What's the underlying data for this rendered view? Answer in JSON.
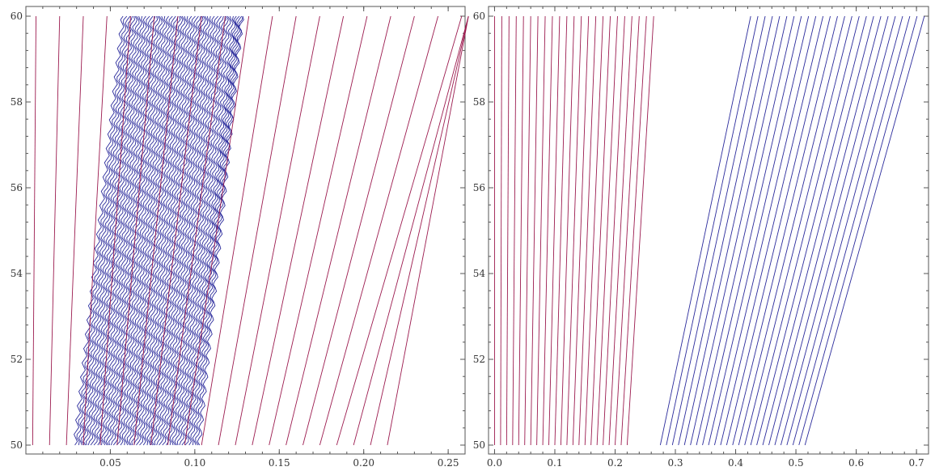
{
  "chart_data": [
    {
      "type": "line",
      "xlim": [
        0.0,
        0.26
      ],
      "ylim": [
        50,
        60
      ],
      "x_major_ticks": [
        0.05,
        0.1,
        0.15,
        0.2,
        0.25
      ],
      "x_minor_step": 0.01,
      "y_major_ticks": [
        50,
        52,
        54,
        56,
        58,
        60
      ],
      "y_minor_step": 0.4,
      "grid": false,
      "colors": {
        "series_a": "#2b2b9c",
        "series_b": "#9c1b4f"
      },
      "series": [
        {
          "color_key": "series_a",
          "x_start": [
            0.029,
            0.0305,
            0.032,
            0.0335,
            0.035,
            0.0365,
            0.038,
            0.0395,
            0.041,
            0.0425,
            0.044,
            0.0455,
            0.047,
            0.0485,
            0.05,
            0.0515,
            0.053,
            0.0545,
            0.056,
            0.0575,
            0.059,
            0.0605,
            0.062,
            0.0635,
            0.065,
            0.0665,
            0.068,
            0.0695,
            0.071,
            0.0725,
            0.074,
            0.0755,
            0.077,
            0.0785,
            0.08,
            0.0815,
            0.083,
            0.0845,
            0.086,
            0.0875,
            0.089,
            0.0905,
            0.092,
            0.0935,
            0.095,
            0.0965,
            0.098,
            0.0995,
            0.101,
            0.1025
          ],
          "x_end": [
            0.0575,
            0.059,
            0.0605,
            0.062,
            0.0635,
            0.065,
            0.0665,
            0.068,
            0.0695,
            0.071,
            0.0725,
            0.074,
            0.0755,
            0.077,
            0.0785,
            0.08,
            0.0815,
            0.083,
            0.0845,
            0.086,
            0.0875,
            0.089,
            0.0905,
            0.092,
            0.0935,
            0.095,
            0.0965,
            0.098,
            0.0995,
            0.101,
            0.1025,
            0.104,
            0.1055,
            0.107,
            0.1085,
            0.11,
            0.1115,
            0.113,
            0.1145,
            0.116,
            0.1175,
            0.119,
            0.1205,
            0.122,
            0.1235,
            0.1245,
            0.1255,
            0.1265,
            0.1275,
            0.128
          ],
          "oscillation_amplitude": 0.0012,
          "oscillation_cycles": 30
        },
        {
          "color_key": "series_b",
          "x_start": [
            0.004,
            0.014,
            0.024,
            0.034,
            0.044,
            0.054,
            0.064,
            0.074,
            0.084,
            0.094,
            0.104,
            0.114,
            0.124,
            0.134,
            0.144,
            0.154,
            0.164,
            0.174,
            0.184,
            0.194,
            0.204,
            0.214
          ],
          "x_end": [
            0.006,
            0.02,
            0.034,
            0.048,
            0.062,
            0.076,
            0.09,
            0.104,
            0.118,
            0.132,
            0.146,
            0.16,
            0.174,
            0.188,
            0.202,
            0.216,
            0.23,
            0.244,
            0.258,
            0.262,
            0.262,
            0.262
          ]
        }
      ]
    },
    {
      "type": "line",
      "xlim": [
        -0.01,
        0.72
      ],
      "ylim": [
        50,
        60
      ],
      "x_major_ticks": [
        0.0,
        0.1,
        0.2,
        0.3,
        0.4,
        0.5,
        0.6,
        0.7
      ],
      "x_minor_step": 0.02,
      "y_major_ticks": [
        50,
        52,
        54,
        56,
        58,
        60
      ],
      "y_minor_step": 0.4,
      "grid": false,
      "colors": {
        "series_a": "#2b2b9c",
        "series_b": "#9c1b4f"
      },
      "series": [
        {
          "color_key": "series_b",
          "x_start": [
            0.0,
            0.01,
            0.02,
            0.03,
            0.04,
            0.05,
            0.06,
            0.07,
            0.08,
            0.09,
            0.1,
            0.11,
            0.12,
            0.13,
            0.14,
            0.15,
            0.16,
            0.17,
            0.18,
            0.19,
            0.2,
            0.21,
            0.22
          ],
          "x_end": [
            0.0,
            0.012,
            0.024,
            0.036,
            0.048,
            0.06,
            0.072,
            0.084,
            0.096,
            0.108,
            0.12,
            0.132,
            0.144,
            0.156,
            0.168,
            0.18,
            0.192,
            0.204,
            0.216,
            0.228,
            0.24,
            0.252,
            0.264
          ]
        },
        {
          "color_key": "series_a",
          "x_start": [
            0.275,
            0.285,
            0.295,
            0.305,
            0.315,
            0.325,
            0.335,
            0.345,
            0.355,
            0.365,
            0.375,
            0.385,
            0.395,
            0.405,
            0.415,
            0.425,
            0.435,
            0.445,
            0.455,
            0.465,
            0.475,
            0.485,
            0.495,
            0.505,
            0.515
          ],
          "x_end": [
            0.425,
            0.437,
            0.449,
            0.461,
            0.473,
            0.485,
            0.497,
            0.509,
            0.521,
            0.533,
            0.545,
            0.557,
            0.569,
            0.581,
            0.593,
            0.605,
            0.617,
            0.629,
            0.641,
            0.653,
            0.665,
            0.677,
            0.689,
            0.701,
            0.713
          ]
        }
      ]
    }
  ]
}
